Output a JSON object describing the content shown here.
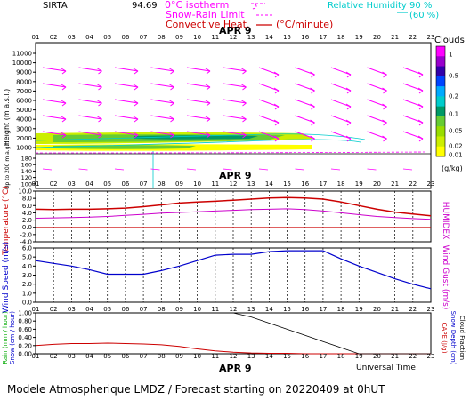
{
  "header": {
    "site": "SIRTA",
    "altitude": "94.69",
    "legend_isotherm": "0°C isotherm",
    "legend_snow": "Snow-Rain Limit",
    "legend_convective": "Convective Heat.",
    "legend_convective_unit": "(°C/minute)",
    "legend_rh": "Relative Humidity",
    "rh_90": "90 %",
    "rh_60": "(60 %)"
  },
  "date_label": "APR 9",
  "hours": [
    "01",
    "02",
    "03",
    "04",
    "05",
    "06",
    "07",
    "08",
    "09",
    "10",
    "11",
    "12",
    "13",
    "14",
    "15",
    "16",
    "17",
    "18",
    "19",
    "20",
    "21",
    "22",
    "23"
  ],
  "footer": "Modele Atmospherique LMDZ / Forecast starting on 20220409 at 0hUT",
  "universal_time": "Universal Time",
  "colors": {
    "temperature": "#cc0000",
    "humidex": "#cc00cc",
    "wind": "#0000cc",
    "wind_arrow": "#ff00ff",
    "rain": "#cc0000",
    "cloud_fraction": "#000000"
  },
  "chart_data": [
    {
      "type": "heatmap",
      "name": "clouds-wind",
      "ylabel": "Height (m a.s.l.)",
      "ylabel_lower": "Up to 200 m a.g.l.",
      "yticks": [
        "11000",
        "10000",
        "9000",
        "8000",
        "7000",
        "6000",
        "5000",
        "4000",
        "3000",
        "2000",
        "1000"
      ],
      "yticks_lower": [
        "180",
        "160",
        "140",
        "120",
        "100"
      ],
      "colorbar_title": "Clouds",
      "colorbar_unit": "(g/kg)",
      "colorbar_ticks": [
        "1",
        "0.5",
        "0.2",
        "0.1",
        "0.05",
        "0.02",
        "0.01"
      ],
      "colorbar_colors": [
        "#ff00ff",
        "#9900cc",
        "#3300aa",
        "#0044ff",
        "#00aaff",
        "#00cccc",
        "#009966",
        "#66cc33",
        "#99dd00",
        "#ccee00",
        "#ffff00"
      ]
    },
    {
      "type": "line",
      "name": "temperature",
      "ylabel": "Temperature (°C)",
      "ylabel_right": "HUMIDEX",
      "yticks": [
        "10.0",
        "8.0",
        "6.0",
        "4.0",
        "2.0",
        "0.0",
        "-2.0",
        "-4.0"
      ],
      "ylim": [
        -4,
        10
      ],
      "x": [
        1,
        2,
        3,
        4,
        5,
        6,
        7,
        8,
        9,
        10,
        11,
        12,
        13,
        14,
        15,
        16,
        17,
        18,
        19,
        20,
        21,
        22,
        23
      ],
      "series": [
        {
          "values": [
            5.0,
            4.9,
            5.0,
            5.0,
            5.1,
            5.3,
            5.7,
            6.2,
            6.7,
            7.0,
            7.2,
            7.5,
            7.8,
            8.1,
            8.2,
            8.1,
            7.8,
            7.0,
            6.0,
            5.0,
            4.2,
            3.7,
            3.2
          ]
        },
        {
          "values": [
            2.5,
            2.6,
            2.7,
            2.8,
            3.0,
            3.3,
            3.6,
            3.9,
            4.1,
            4.3,
            4.5,
            4.7,
            4.9,
            5.0,
            5.1,
            4.9,
            4.5,
            4.0,
            3.5,
            3.0,
            2.7,
            2.4,
            2.2
          ]
        }
      ]
    },
    {
      "type": "line",
      "name": "wind-speed",
      "ylabel": "Wind Speed (m/s)",
      "ylabel_right": "Wind Gust (m/s)",
      "yticks": [
        "6.0",
        "5.0",
        "4.0",
        "3.0",
        "2.0",
        "1.0",
        "0.0"
      ],
      "ylim": [
        0,
        6
      ],
      "x": [
        1,
        2,
        3,
        4,
        5,
        6,
        7,
        8,
        9,
        10,
        11,
        12,
        13,
        14,
        15,
        16,
        17,
        18,
        19,
        20,
        21,
        22,
        23
      ],
      "series": [
        {
          "values": [
            4.6,
            4.3,
            4.0,
            3.6,
            3.1,
            3.1,
            3.1,
            3.5,
            4.0,
            4.6,
            5.2,
            5.3,
            5.3,
            5.6,
            5.7,
            5.7,
            5.7,
            4.8,
            4.0,
            3.3,
            2.6,
            2.0,
            1.5
          ]
        }
      ]
    },
    {
      "type": "line",
      "name": "rain-cloud",
      "ylabel": "Rain (mm / hour)",
      "ylabel2": "Snow (cm / hour)",
      "ylabel_right": "CAPE (J/g)",
      "ylabel_right2": "Snow Depth (cm)",
      "ylabel_right3": "Cloud Fraction",
      "yticks": [
        "1.00",
        "0.80",
        "0.60",
        "0.40",
        "0.20",
        "0.00"
      ],
      "ylim": [
        0,
        1
      ],
      "x": [
        1,
        2,
        3,
        4,
        5,
        6,
        7,
        8,
        9,
        10,
        11,
        12,
        13,
        14,
        15,
        16,
        17,
        18,
        19,
        20,
        21,
        22,
        23
      ],
      "series": [
        {
          "values": [
            0.2,
            0.23,
            0.25,
            0.25,
            0.26,
            0.25,
            0.24,
            0.22,
            0.18,
            0.12,
            0.07,
            0.04,
            0.02,
            0.01,
            0.01,
            0.0,
            0.0,
            0.0,
            0.0,
            0.0,
            0.0,
            0.0,
            0.0
          ]
        },
        {
          "values": [
            1.0,
            1.0,
            1.0,
            1.0,
            1.0,
            1.0,
            1.0,
            1.0,
            1.0,
            1.0,
            1.0,
            1.0,
            0.9,
            0.75,
            0.6,
            0.45,
            0.3,
            0.15,
            0.0,
            0.0,
            0.0,
            0.0,
            0.0
          ]
        }
      ]
    }
  ]
}
